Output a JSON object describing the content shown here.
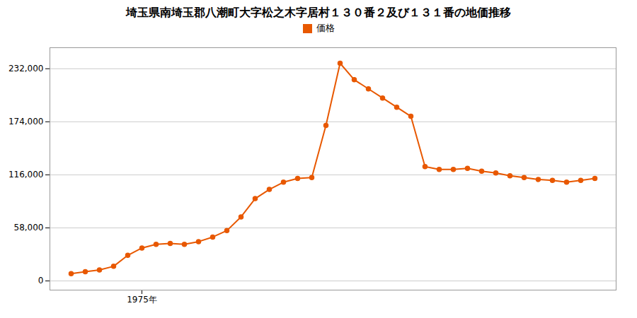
{
  "chart_data": {
    "type": "line",
    "title": "埼玉県南埼玉郡八潮町大字松之木字居村１３０番２及び１３１番の地価推移",
    "x": [
      1970,
      1971,
      1972,
      1973,
      1974,
      1975,
      1976,
      1977,
      1978,
      1979,
      1980,
      1981,
      1982,
      1983,
      1984,
      1985,
      1986,
      1987,
      1988,
      1989,
      1990,
      1991,
      1992,
      1993,
      1994,
      1995,
      1996,
      1997,
      1998,
      1999,
      2000,
      2001,
      2002,
      2003,
      2004,
      2005,
      2006,
      2007
    ],
    "series": [
      {
        "name": "価格",
        "color": "#e85800",
        "marker": "circle",
        "values": [
          8000,
          10000,
          12000,
          16000,
          28000,
          36000,
          40000,
          41000,
          40000,
          43000,
          48000,
          55000,
          70000,
          90000,
          100000,
          108000,
          112000,
          113000,
          170000,
          238000,
          220000,
          210000,
          200000,
          190000,
          180000,
          125000,
          122000,
          122000,
          123000,
          120000,
          118000,
          115000,
          113000,
          111000,
          110000,
          108000,
          110000,
          112000
        ]
      }
    ],
    "xlim": [
      1968.5,
      2008.5
    ],
    "xticks": [
      {
        "value": 1975,
        "label": "1975年"
      }
    ],
    "ylim": [
      -10000,
      255000
    ],
    "yticks": [
      0,
      {
        "value": 58000,
        "label": "58,000"
      },
      {
        "value": 116000,
        "label": "116,000"
      },
      {
        "value": 174000,
        "label": "174,000"
      },
      {
        "value": 232000,
        "label": "232,000"
      }
    ],
    "grid": "y",
    "legend": "top"
  }
}
